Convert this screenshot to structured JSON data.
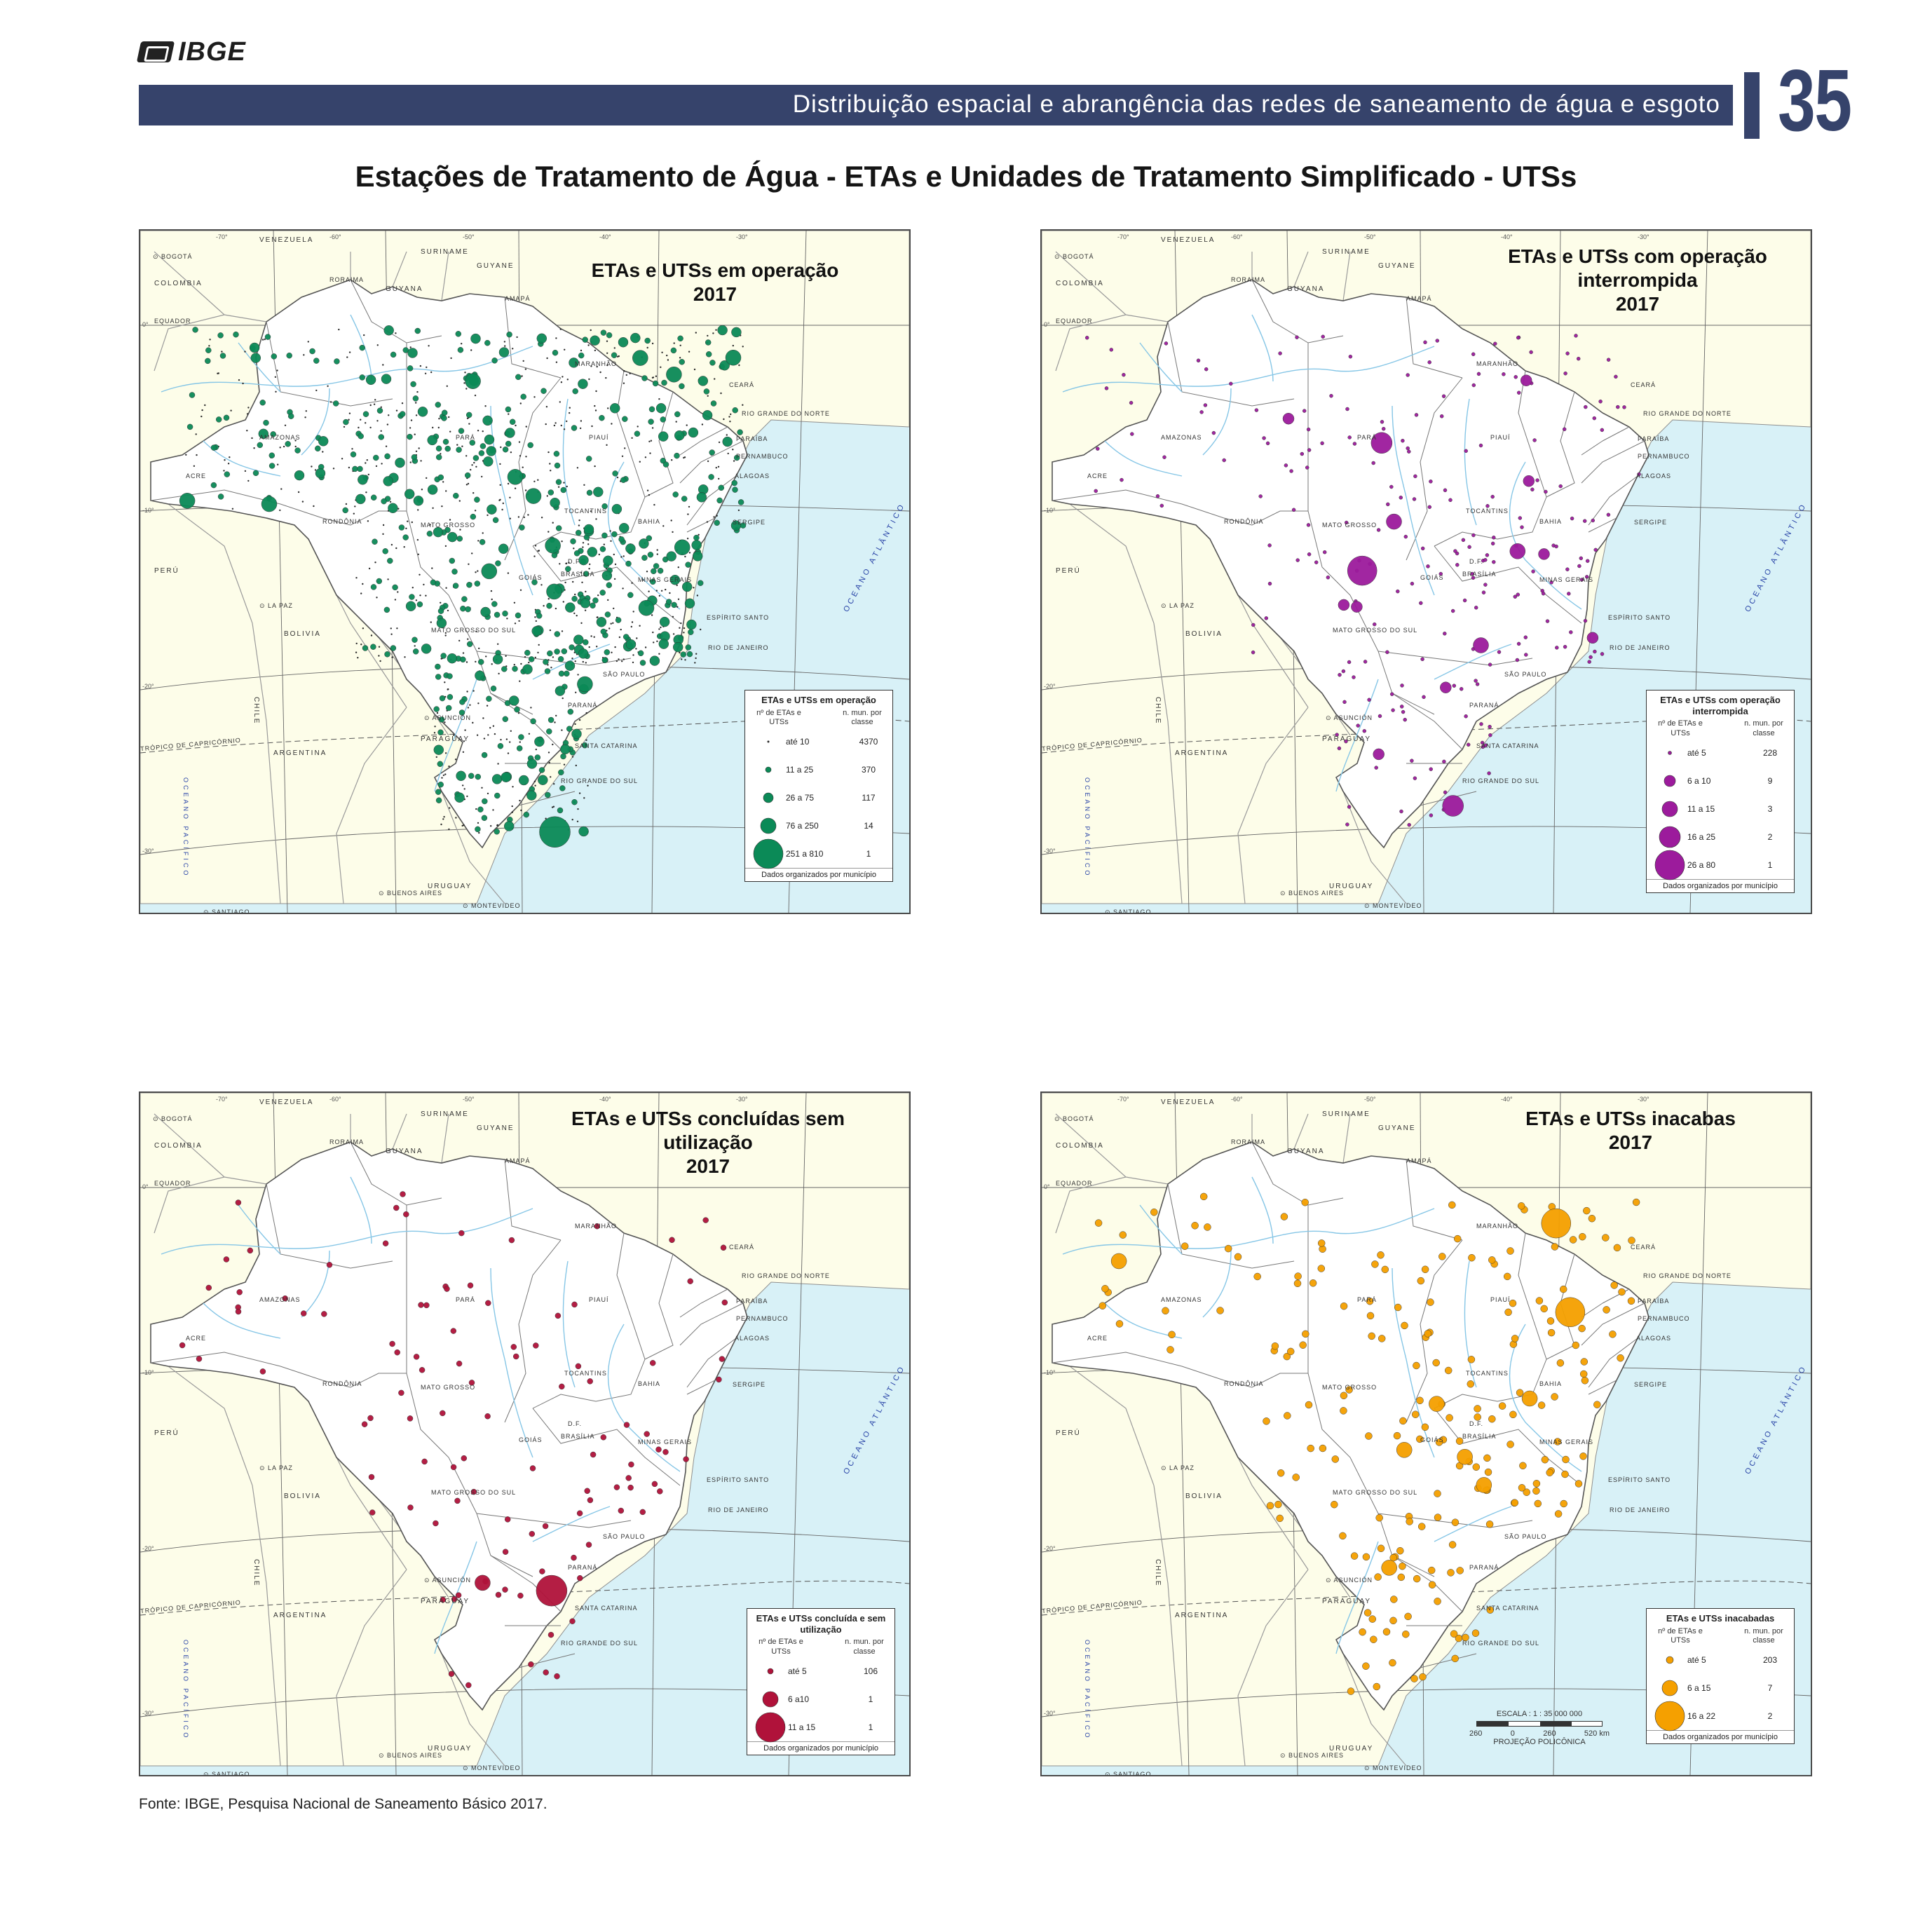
{
  "header": {
    "logo_text": "IBGE",
    "title": "Distribuição espacial e abrangência das redes de saneamento de água e esgoto",
    "page_number": "35",
    "accent_color": "#36436b"
  },
  "main_title": "Estações de Tratamento de Água - ETAs e Unidades de Tratamento Simplificado - UTSs",
  "base_map_labels": {
    "countries": [
      "VENEZUELA",
      "COLOMBIA",
      "GUYANA",
      "SURINAME",
      "GUYANE",
      "PERÚ",
      "BOLIVIA",
      "PARAGUAY",
      "ARGENTINA",
      "CHILE",
      "URUGUAY"
    ],
    "states": [
      "RORAIMA",
      "AMAPÁ",
      "AMAZONAS",
      "PARÁ",
      "ACRE",
      "RONDÔNIA",
      "MATO GROSSO",
      "TOCANTINS",
      "MARANHÃO",
      "PIAUÍ",
      "CEARÁ",
      "RIO GRANDE DO NORTE",
      "PARAÍBA",
      "PERNAMBUCO",
      "ALAGOAS",
      "SERGIPE",
      "BAHIA",
      "GOIÁS",
      "D.F.",
      "BRASÍLIA",
      "MINAS GERAIS",
      "ESPÍRITO SANTO",
      "RIO DE JANEIRO",
      "SÃO PAULO",
      "MATO GROSSO DO SUL",
      "PARANÁ",
      "SANTA CATARINA",
      "RIO GRANDE DO SUL"
    ],
    "cities": [
      "BOGOTÁ",
      "LA PAZ",
      "ASUNCIÓN",
      "BUENOS AIRES",
      "MONTEVIDEO",
      "SANTIAGO"
    ],
    "lines": [
      "EQUADOR",
      "TRÓPICO DE CAPRICÓRNIO"
    ],
    "oceans": [
      "OCEANO ATLÂNTICO",
      "OCEANO PACÍFICO"
    ],
    "longitudes": [
      "-70°",
      "-60°",
      "-50°",
      "-40°",
      "-30°"
    ],
    "latitudes": [
      "0°",
      "-10°",
      "-20°",
      "-30°"
    ]
  },
  "maps": [
    {
      "id": "operacao",
      "title_lines": [
        "ETAs e UTSs em operação",
        "2017"
      ],
      "color": "#0b8a57",
      "legend": {
        "title": "ETAs e UTSs em operação",
        "col1": "nº de ETAs e UTSs",
        "col2": "n. mun. por classe",
        "rows": [
          {
            "label": "até 10",
            "count": "4370"
          },
          {
            "label": "11 a 25",
            "count": "370"
          },
          {
            "label": "26 a 75",
            "count": "117"
          },
          {
            "label": "76 a 250",
            "count": "14"
          },
          {
            "label": "251 a 810",
            "count": "1"
          }
        ],
        "note": "Dados organizados por município"
      }
    },
    {
      "id": "interrompida",
      "title_lines": [
        "ETAs e UTSs com operação",
        "interrompida",
        "2017"
      ],
      "color": "#9c1b9c",
      "legend": {
        "title": "ETAs e UTSs com operação interrompida",
        "col1": "nº de ETAs e UTSs",
        "col2": "n. mun. por classe",
        "rows": [
          {
            "label": "até 5",
            "count": "228"
          },
          {
            "label": "6 a 10",
            "count": "9"
          },
          {
            "label": "11 a 15",
            "count": "3"
          },
          {
            "label": "16 a 25",
            "count": "2"
          },
          {
            "label": "26 a 80",
            "count": "1"
          }
        ],
        "note": "Dados organizados por município"
      }
    },
    {
      "id": "semutilizacao",
      "title_lines": [
        "ETAs e UTSs concluídas sem",
        "utilização",
        "2017"
      ],
      "color": "#b0123a",
      "legend": {
        "title": "ETAs e UTSs concluída e sem utilização",
        "col1": "nº de ETAs e UTSs",
        "col2": "n. mun. por classe",
        "rows": [
          {
            "label": "até 5",
            "count": "106"
          },
          {
            "label": "6 a10",
            "count": "1"
          },
          {
            "label": "11 a 15",
            "count": "1"
          }
        ],
        "note": "Dados organizados por município"
      }
    },
    {
      "id": "inacabadas",
      "title_lines": [
        "ETAs e UTSs inacabas",
        "2017"
      ],
      "color": "#f5a000",
      "legend": {
        "title": "ETAs e UTSs inacabadas",
        "col1": "nº de ETAs e UTSs",
        "col2": "n. mun. por classe",
        "rows": [
          {
            "label": "até 5",
            "count": "203"
          },
          {
            "label": "6 a 15",
            "count": "7"
          },
          {
            "label": "16 a 22",
            "count": "2"
          }
        ],
        "note": "Dados organizados por município"
      },
      "scale": {
        "text": "ESCALA : 1 : 35 000 000",
        "ticks": [
          "260",
          "0",
          "260",
          "520 km"
        ],
        "projection": "PROJEÇÃO POLICÔNICA"
      }
    }
  ],
  "source": "Fonte: IBGE, Pesquisa Nacional de Saneamento Básico 2017."
}
